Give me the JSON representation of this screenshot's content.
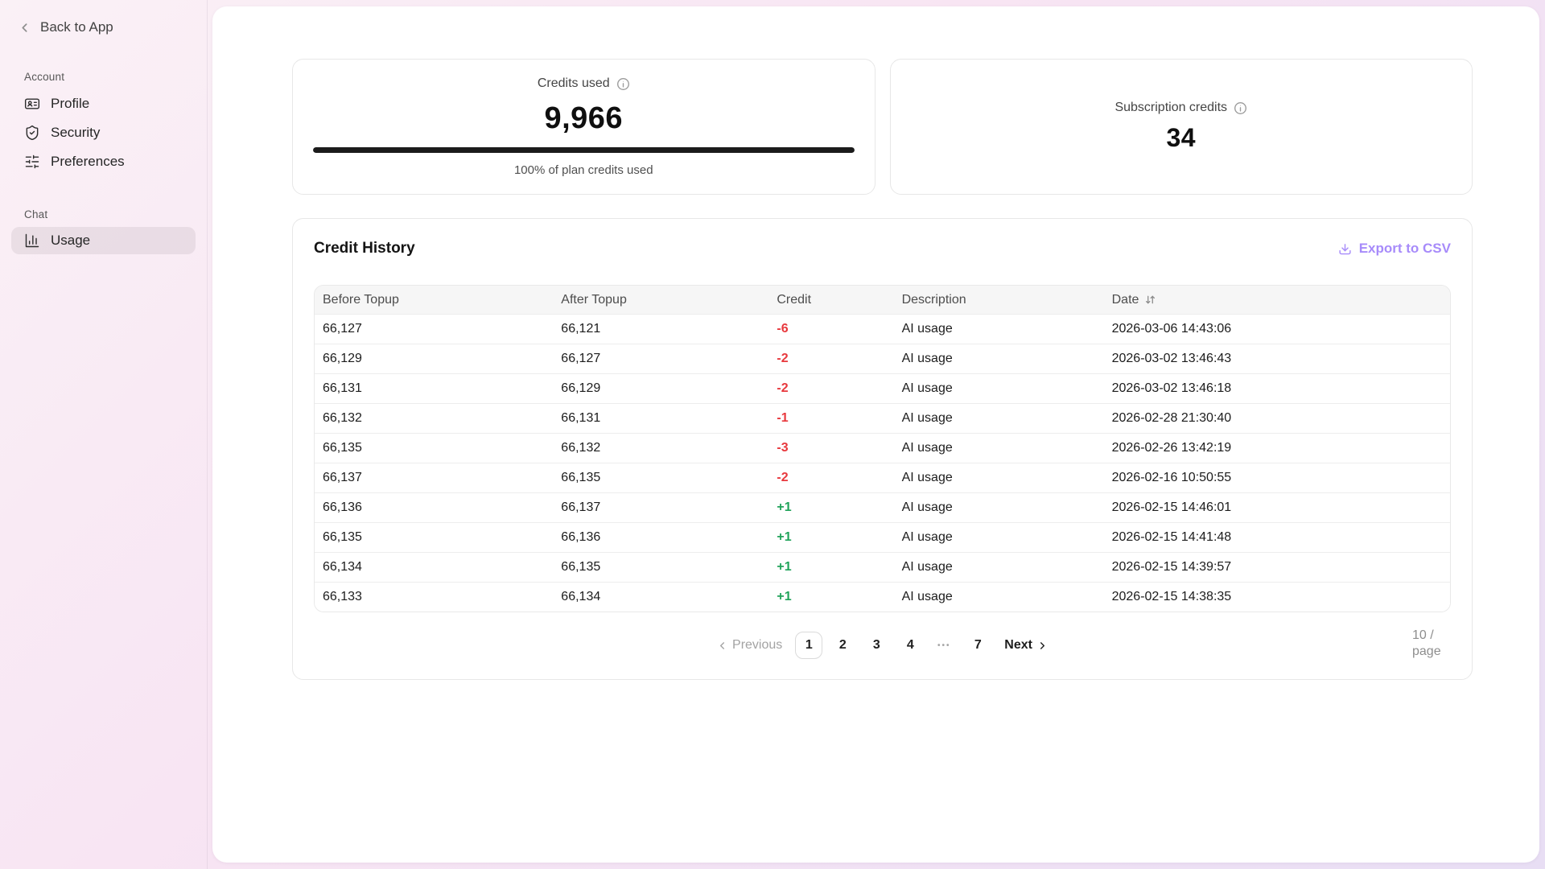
{
  "colors": {
    "negative": "#e8383d",
    "positive": "#21a35a",
    "accent": "#a78bfa",
    "progress": "#1b1b1b"
  },
  "sidebar": {
    "back_label": "Back to App",
    "sections": [
      {
        "label": "Account",
        "items": [
          {
            "label": "Profile",
            "icon": "id-card-icon"
          },
          {
            "label": "Security",
            "icon": "shield-check-icon"
          },
          {
            "label": "Preferences",
            "icon": "sliders-icon"
          }
        ]
      },
      {
        "label": "Chat",
        "items": [
          {
            "label": "Usage",
            "icon": "bar-chart-icon",
            "active": true
          }
        ]
      }
    ]
  },
  "stats": {
    "credits_used": {
      "label": "Credits used",
      "value": "9,966",
      "progress_percent": 100,
      "caption": "100% of plan credits used"
    },
    "subscription_credits": {
      "label": "Subscription credits",
      "value": "34"
    }
  },
  "credit_history": {
    "title": "Credit History",
    "export_label": "Export to CSV",
    "columns": [
      "Before Topup",
      "After Topup",
      "Credit",
      "Description",
      "Date"
    ],
    "rows": [
      {
        "before": "66,127",
        "after": "66,121",
        "credit": "-6",
        "description": "AI usage",
        "date": "2026-03-06 14:43:06"
      },
      {
        "before": "66,129",
        "after": "66,127",
        "credit": "-2",
        "description": "AI usage",
        "date": "2026-03-02 13:46:43"
      },
      {
        "before": "66,131",
        "after": "66,129",
        "credit": "-2",
        "description": "AI usage",
        "date": "2026-03-02 13:46:18"
      },
      {
        "before": "66,132",
        "after": "66,131",
        "credit": "-1",
        "description": "AI usage",
        "date": "2026-02-28 21:30:40"
      },
      {
        "before": "66,135",
        "after": "66,132",
        "credit": "-3",
        "description": "AI usage",
        "date": "2026-02-26 13:42:19"
      },
      {
        "before": "66,137",
        "after": "66,135",
        "credit": "-2",
        "description": "AI usage",
        "date": "2026-02-16 10:50:55"
      },
      {
        "before": "66,136",
        "after": "66,137",
        "credit": "+1",
        "description": "AI usage",
        "date": "2026-02-15 14:46:01"
      },
      {
        "before": "66,135",
        "after": "66,136",
        "credit": "+1",
        "description": "AI usage",
        "date": "2026-02-15 14:41:48"
      },
      {
        "before": "66,134",
        "after": "66,135",
        "credit": "+1",
        "description": "AI usage",
        "date": "2026-02-15 14:39:57"
      },
      {
        "before": "66,133",
        "after": "66,134",
        "credit": "+1",
        "description": "AI usage",
        "date": "2026-02-15 14:38:35"
      }
    ],
    "pagination": {
      "previous": "Previous",
      "pages": [
        "1",
        "2",
        "3",
        "4",
        "•••",
        "7"
      ],
      "current_page": "1",
      "next": "Next",
      "page_size": "10 / page"
    }
  }
}
